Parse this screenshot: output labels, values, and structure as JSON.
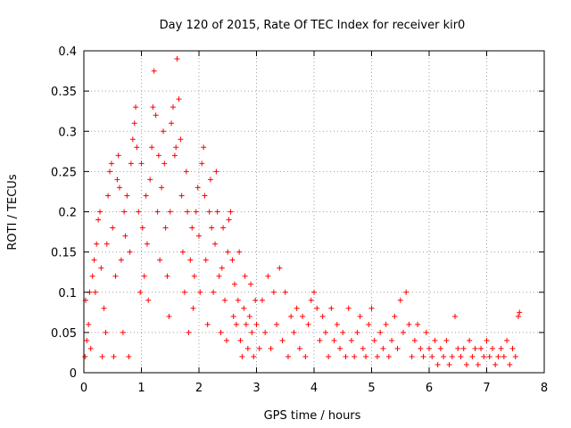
{
  "chart_data": {
    "type": "scatter",
    "title": "Day 120 of 2015, Rate Of TEC Index for receiver kir0",
    "xlabel": "GPS time / hours",
    "ylabel": "ROTI / TECUs",
    "xlim": [
      0,
      8
    ],
    "ylim": [
      0,
      0.4
    ],
    "grid": true,
    "marker": "+",
    "series_color": "#ff0000",
    "x_ticks": [
      "0",
      "1",
      "2",
      "3",
      "4",
      "5",
      "6",
      "7",
      "8"
    ],
    "y_ticks": [
      "0",
      "0.05",
      "0.1",
      "0.15",
      "0.2",
      "0.25",
      "0.3",
      "0.35",
      "0.4"
    ],
    "x_tick_values": [
      0,
      1,
      2,
      3,
      4,
      5,
      6,
      7,
      8
    ],
    "y_tick_values": [
      0,
      0.05,
      0.1,
      0.15,
      0.2,
      0.25,
      0.3,
      0.35,
      0.4
    ],
    "series": [
      {
        "name": "ROTI",
        "points": [
          [
            0.02,
            0.02
          ],
          [
            0.05,
            0.04
          ],
          [
            0.08,
            0.06
          ],
          [
            0.03,
            0.09
          ],
          [
            0.1,
            0.1
          ],
          [
            0.12,
            0.03
          ],
          [
            0.15,
            0.12
          ],
          [
            0.18,
            0.14
          ],
          [
            0.2,
            0.1
          ],
          [
            0.22,
            0.16
          ],
          [
            0.25,
            0.19
          ],
          [
            0.28,
            0.2
          ],
          [
            0.3,
            0.13
          ],
          [
            0.32,
            0.02
          ],
          [
            0.35,
            0.08
          ],
          [
            0.38,
            0.05
          ],
          [
            0.4,
            0.16
          ],
          [
            0.42,
            0.22
          ],
          [
            0.45,
            0.25
          ],
          [
            0.48,
            0.26
          ],
          [
            0.5,
            0.18
          ],
          [
            0.52,
            0.02
          ],
          [
            0.55,
            0.12
          ],
          [
            0.58,
            0.24
          ],
          [
            0.6,
            0.27
          ],
          [
            0.62,
            0.23
          ],
          [
            0.65,
            0.14
          ],
          [
            0.68,
            0.05
          ],
          [
            0.7,
            0.2
          ],
          [
            0.72,
            0.17
          ],
          [
            0.75,
            0.22
          ],
          [
            0.78,
            0.02
          ],
          [
            0.8,
            0.15
          ],
          [
            0.82,
            0.26
          ],
          [
            0.85,
            0.29
          ],
          [
            0.88,
            0.31
          ],
          [
            0.9,
            0.33
          ],
          [
            0.92,
            0.28
          ],
          [
            0.95,
            0.2
          ],
          [
            0.98,
            0.1
          ],
          [
            1.0,
            0.26
          ],
          [
            1.02,
            0.18
          ],
          [
            1.05,
            0.12
          ],
          [
            1.08,
            0.22
          ],
          [
            1.1,
            0.16
          ],
          [
            1.12,
            0.09
          ],
          [
            1.15,
            0.24
          ],
          [
            1.18,
            0.28
          ],
          [
            1.2,
            0.33
          ],
          [
            1.22,
            0.375
          ],
          [
            1.25,
            0.32
          ],
          [
            1.28,
            0.2
          ],
          [
            1.3,
            0.27
          ],
          [
            1.32,
            0.14
          ],
          [
            1.35,
            0.23
          ],
          [
            1.38,
            0.3
          ],
          [
            1.4,
            0.26
          ],
          [
            1.42,
            0.18
          ],
          [
            1.45,
            0.12
          ],
          [
            1.48,
            0.07
          ],
          [
            1.5,
            0.2
          ],
          [
            1.52,
            0.31
          ],
          [
            1.55,
            0.33
          ],
          [
            1.58,
            0.27
          ],
          [
            1.6,
            0.28
          ],
          [
            1.62,
            0.39
          ],
          [
            1.65,
            0.34
          ],
          [
            1.68,
            0.29
          ],
          [
            1.7,
            0.22
          ],
          [
            1.72,
            0.15
          ],
          [
            1.75,
            0.1
          ],
          [
            1.78,
            0.25
          ],
          [
            1.8,
            0.2
          ],
          [
            1.82,
            0.05
          ],
          [
            1.85,
            0.14
          ],
          [
            1.88,
            0.18
          ],
          [
            1.9,
            0.08
          ],
          [
            1.92,
            0.12
          ],
          [
            1.95,
            0.2
          ],
          [
            1.98,
            0.23
          ],
          [
            2.0,
            0.17
          ],
          [
            2.02,
            0.1
          ],
          [
            2.05,
            0.26
          ],
          [
            2.08,
            0.28
          ],
          [
            2.1,
            0.22
          ],
          [
            2.12,
            0.14
          ],
          [
            2.15,
            0.06
          ],
          [
            2.18,
            0.2
          ],
          [
            2.2,
            0.24
          ],
          [
            2.22,
            0.18
          ],
          [
            2.25,
            0.1
          ],
          [
            2.28,
            0.16
          ],
          [
            2.3,
            0.25
          ],
          [
            2.32,
            0.2
          ],
          [
            2.35,
            0.12
          ],
          [
            2.38,
            0.05
          ],
          [
            2.4,
            0.13
          ],
          [
            2.42,
            0.18
          ],
          [
            2.45,
            0.09
          ],
          [
            2.48,
            0.04
          ],
          [
            2.5,
            0.15
          ],
          [
            2.52,
            0.19
          ],
          [
            2.55,
            0.2
          ],
          [
            2.58,
            0.14
          ],
          [
            2.6,
            0.07
          ],
          [
            2.62,
            0.11
          ],
          [
            2.65,
            0.06
          ],
          [
            2.68,
            0.09
          ],
          [
            2.7,
            0.15
          ],
          [
            2.72,
            0.04
          ],
          [
            2.75,
            0.02
          ],
          [
            2.78,
            0.08
          ],
          [
            2.8,
            0.12
          ],
          [
            2.82,
            0.06
          ],
          [
            2.85,
            0.03
          ],
          [
            2.88,
            0.07
          ],
          [
            2.9,
            0.11
          ],
          [
            2.92,
            0.05
          ],
          [
            2.95,
            0.02
          ],
          [
            2.98,
            0.09
          ],
          [
            3.0,
            0.06
          ],
          [
            3.05,
            0.03
          ],
          [
            3.1,
            0.09
          ],
          [
            3.15,
            0.05
          ],
          [
            3.2,
            0.12
          ],
          [
            3.25,
            0.03
          ],
          [
            3.3,
            0.1
          ],
          [
            3.35,
            0.06
          ],
          [
            3.4,
            0.13
          ],
          [
            3.45,
            0.04
          ],
          [
            3.5,
            0.1
          ],
          [
            3.55,
            0.02
          ],
          [
            3.6,
            0.07
          ],
          [
            3.65,
            0.05
          ],
          [
            3.7,
            0.08
          ],
          [
            3.75,
            0.03
          ],
          [
            3.8,
            0.07
          ],
          [
            3.85,
            0.02
          ],
          [
            3.9,
            0.06
          ],
          [
            3.95,
            0.09
          ],
          [
            4.0,
            0.1
          ],
          [
            4.05,
            0.08
          ],
          [
            4.1,
            0.04
          ],
          [
            4.15,
            0.07
          ],
          [
            4.2,
            0.05
          ],
          [
            4.25,
            0.02
          ],
          [
            4.3,
            0.08
          ],
          [
            4.35,
            0.04
          ],
          [
            4.4,
            0.06
          ],
          [
            4.45,
            0.03
          ],
          [
            4.5,
            0.05
          ],
          [
            4.55,
            0.02
          ],
          [
            4.6,
            0.08
          ],
          [
            4.65,
            0.04
          ],
          [
            4.7,
            0.02
          ],
          [
            4.75,
            0.05
          ],
          [
            4.8,
            0.07
          ],
          [
            4.85,
            0.03
          ],
          [
            4.9,
            0.02
          ],
          [
            4.95,
            0.06
          ],
          [
            5.0,
            0.08
          ],
          [
            5.05,
            0.04
          ],
          [
            5.1,
            0.02
          ],
          [
            5.15,
            0.05
          ],
          [
            5.2,
            0.03
          ],
          [
            5.25,
            0.06
          ],
          [
            5.3,
            0.02
          ],
          [
            5.35,
            0.04
          ],
          [
            5.4,
            0.07
          ],
          [
            5.45,
            0.03
          ],
          [
            5.5,
            0.09
          ],
          [
            5.55,
            0.05
          ],
          [
            5.6,
            0.1
          ],
          [
            5.65,
            0.06
          ],
          [
            5.7,
            0.02
          ],
          [
            5.75,
            0.04
          ],
          [
            5.8,
            0.06
          ],
          [
            5.85,
            0.03
          ],
          [
            5.9,
            0.02
          ],
          [
            5.95,
            0.05
          ],
          [
            6.0,
            0.03
          ],
          [
            6.05,
            0.02
          ],
          [
            6.1,
            0.04
          ],
          [
            6.15,
            0.01
          ],
          [
            6.2,
            0.03
          ],
          [
            6.25,
            0.02
          ],
          [
            6.3,
            0.04
          ],
          [
            6.35,
            0.01
          ],
          [
            6.4,
            0.02
          ],
          [
            6.45,
            0.07
          ],
          [
            6.5,
            0.03
          ],
          [
            6.55,
            0.02
          ],
          [
            6.6,
            0.03
          ],
          [
            6.65,
            0.01
          ],
          [
            6.7,
            0.04
          ],
          [
            6.75,
            0.02
          ],
          [
            6.8,
            0.03
          ],
          [
            6.85,
            0.01
          ],
          [
            6.9,
            0.03
          ],
          [
            6.95,
            0.02
          ],
          [
            7.0,
            0.04
          ],
          [
            7.05,
            0.02
          ],
          [
            7.1,
            0.03
          ],
          [
            7.15,
            0.01
          ],
          [
            7.2,
            0.02
          ],
          [
            7.25,
            0.03
          ],
          [
            7.3,
            0.02
          ],
          [
            7.35,
            0.04
          ],
          [
            7.4,
            0.01
          ],
          [
            7.45,
            0.03
          ],
          [
            7.5,
            0.02
          ],
          [
            7.55,
            0.07
          ],
          [
            7.57,
            0.075
          ]
        ]
      }
    ]
  }
}
